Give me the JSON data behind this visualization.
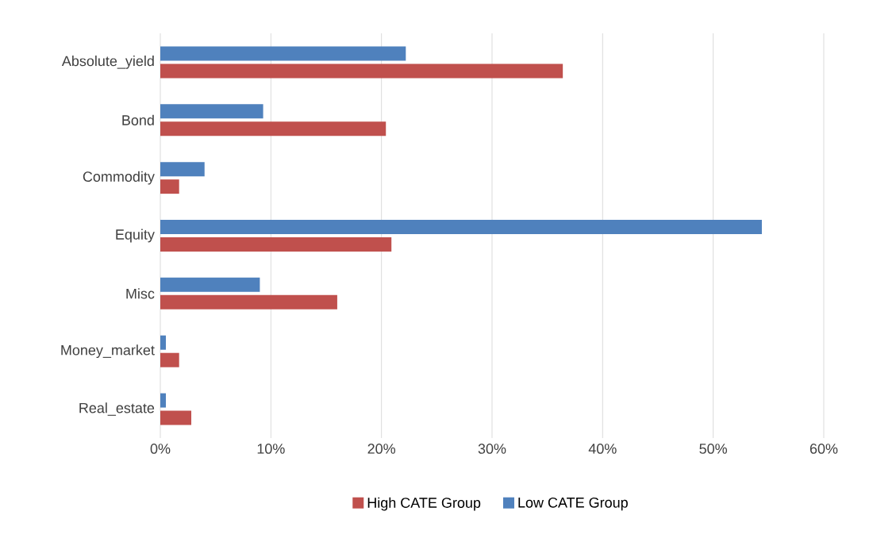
{
  "chart_data": {
    "type": "bar",
    "orientation": "horizontal",
    "categories": [
      "Absolute_yield",
      "Bond",
      "Commodity",
      "Equity",
      "Misc",
      "Money_market",
      "Real_estate"
    ],
    "series": [
      {
        "name": "High CATE Group",
        "color": "#c0504d",
        "values": [
          36.4,
          20.4,
          1.7,
          20.9,
          16.0,
          1.7,
          2.8
        ]
      },
      {
        "name": "Low CATE Group",
        "color": "#4f81bd",
        "values": [
          22.2,
          9.3,
          4.0,
          54.4,
          9.0,
          0.5,
          0.5
        ]
      }
    ],
    "xlim": [
      0,
      60
    ],
    "xticks": [
      {
        "value": 0,
        "label": "0%"
      },
      {
        "value": 10,
        "label": "10%"
      },
      {
        "value": 20,
        "label": "20%"
      },
      {
        "value": 30,
        "label": "30%"
      },
      {
        "value": 40,
        "label": "40%"
      },
      {
        "value": 50,
        "label": "50%"
      },
      {
        "value": 60,
        "label": "60%"
      }
    ],
    "grid": "x",
    "legend": "bottom"
  }
}
